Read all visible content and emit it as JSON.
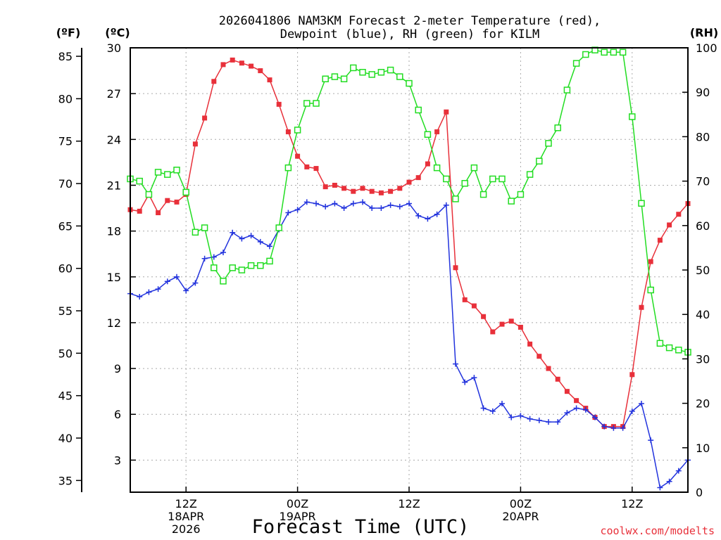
{
  "chart_data": {
    "type": "line",
    "title_line1": "2026041806 NAM3KM Forecast 2-meter Temperature (red),",
    "title_line2": "Dewpoint (blue), RH (green) for KILM",
    "xlabel": "Forecast Time (UTC)",
    "watermark": "coolwx.com/modelts",
    "unit_f": "(ºF)",
    "unit_c": "(ºC)",
    "unit_rh": "(RH)",
    "y_c_ticks": [
      "3",
      "6",
      "9",
      "12",
      "15",
      "18",
      "21",
      "24",
      "27",
      "30"
    ],
    "y_f_ticks": [
      "35",
      "40",
      "45",
      "50",
      "55",
      "60",
      "65",
      "70",
      "75",
      "80",
      "85"
    ],
    "y_rh_ticks": [
      "0",
      "10",
      "20",
      "30",
      "40",
      "50",
      "60",
      "70",
      "80",
      "90",
      "100"
    ],
    "x_ticks": [
      {
        "label": "12Z",
        "sub1": "18APR",
        "sub2": "2026",
        "hour": 12
      },
      {
        "label": "00Z",
        "sub1": "19APR",
        "sub2": "",
        "hour": 24
      },
      {
        "label": "12Z",
        "sub1": "",
        "sub2": "",
        "hour": 36
      },
      {
        "label": "00Z",
        "sub1": "20APR",
        "sub2": "",
        "hour": 48
      },
      {
        "label": "12Z",
        "sub1": "",
        "sub2": "",
        "hour": 60
      }
    ],
    "xlim": [
      6,
      66
    ],
    "ylim_c": [
      0.9,
      30.0
    ],
    "ylim_rh": [
      0,
      100
    ],
    "series": [
      {
        "color": "#e8303a",
        "marker": "filled-square",
        "axis": "c",
        "x": [
          6,
          7,
          8,
          9,
          10,
          11,
          12,
          13,
          14,
          15,
          16,
          17,
          18,
          19,
          20,
          21,
          22,
          23,
          24,
          25,
          26,
          27,
          28,
          29,
          30,
          31,
          32,
          33,
          34,
          35,
          36,
          37,
          38,
          39,
          40,
          41,
          42,
          43,
          44,
          45,
          46,
          47,
          48,
          49,
          50,
          51,
          52,
          53,
          54,
          55,
          56,
          57,
          58,
          59,
          60,
          61,
          62,
          63,
          64,
          65,
          66
        ],
        "values": [
          19.4,
          19.3,
          20.4,
          19.2,
          20.0,
          19.9,
          20.4,
          23.7,
          25.4,
          27.8,
          28.9,
          29.2,
          29.0,
          28.8,
          28.5,
          27.9,
          26.3,
          24.5,
          22.9,
          22.2,
          22.1,
          20.9,
          21.0,
          20.8,
          20.6,
          20.8,
          20.6,
          20.5,
          20.6,
          20.8,
          21.2,
          21.5,
          22.4,
          24.5,
          25.8,
          15.6,
          13.5,
          13.1,
          12.4,
          11.4,
          11.9,
          12.1,
          11.7,
          10.6,
          9.8,
          9.0,
          8.3,
          7.5,
          6.9,
          6.4,
          5.8,
          5.2,
          5.2,
          5.2,
          8.6,
          13.0,
          16.0,
          17.4,
          18.4,
          19.1,
          19.8
        ]
      },
      {
        "color": "#2233dd",
        "marker": "plus",
        "axis": "c",
        "x": [
          6,
          7,
          8,
          9,
          10,
          11,
          12,
          13,
          14,
          15,
          16,
          17,
          18,
          19,
          20,
          21,
          22,
          23,
          24,
          25,
          26,
          27,
          28,
          29,
          30,
          31,
          32,
          33,
          34,
          35,
          36,
          37,
          38,
          39,
          40,
          41,
          42,
          43,
          44,
          45,
          46,
          47,
          48,
          49,
          50,
          51,
          52,
          53,
          54,
          55,
          56,
          57,
          58,
          59,
          60,
          61,
          62,
          63,
          64,
          65,
          66
        ],
        "values": [
          13.9,
          13.7,
          14.0,
          14.2,
          14.7,
          15.0,
          14.1,
          14.6,
          16.2,
          16.3,
          16.6,
          17.9,
          17.5,
          17.7,
          17.3,
          17.0,
          18.1,
          19.2,
          19.4,
          19.9,
          19.8,
          19.6,
          19.8,
          19.5,
          19.8,
          19.9,
          19.5,
          19.5,
          19.7,
          19.6,
          19.8,
          19.0,
          18.8,
          19.1,
          19.7,
          9.3,
          8.1,
          8.4,
          6.4,
          6.2,
          6.7,
          5.8,
          5.9,
          5.7,
          5.6,
          5.5,
          5.5,
          6.1,
          6.4,
          6.3,
          5.8,
          5.2,
          5.1,
          5.1,
          6.2,
          6.7,
          4.3,
          1.2,
          1.6,
          2.3,
          3.0
        ]
      },
      {
        "color": "#22dd22",
        "marker": "open-square",
        "axis": "rh",
        "x": [
          6,
          7,
          8,
          9,
          10,
          11,
          12,
          13,
          14,
          15,
          16,
          17,
          18,
          19,
          20,
          21,
          22,
          23,
          24,
          25,
          26,
          27,
          28,
          29,
          30,
          31,
          32,
          33,
          34,
          35,
          36,
          37,
          38,
          39,
          40,
          41,
          42,
          43,
          44,
          45,
          46,
          47,
          48,
          49,
          50,
          51,
          52,
          53,
          54,
          55,
          56,
          57,
          58,
          59,
          60,
          61,
          62,
          63,
          64,
          65,
          66
        ],
        "values": [
          70.5,
          70.0,
          67.0,
          72.0,
          71.5,
          72.5,
          67.5,
          58.5,
          59.5,
          50.5,
          47.5,
          50.5,
          50.0,
          51.0,
          51.0,
          52.0,
          59.5,
          73.0,
          81.5,
          87.5,
          87.5,
          93.0,
          93.5,
          93.0,
          95.5,
          94.5,
          94.0,
          94.5,
          95.0,
          93.5,
          92.0,
          86.0,
          80.5,
          73.0,
          70.5,
          66.0,
          69.5,
          73.0,
          67.0,
          70.5,
          70.5,
          65.5,
          67.0,
          71.5,
          74.5,
          78.5,
          82.0,
          90.5,
          96.5,
          98.5,
          99.5,
          99.0,
          99.0,
          99.0,
          84.5,
          65.0,
          45.5,
          33.5,
          32.5,
          32.0,
          31.5
        ]
      }
    ]
  }
}
